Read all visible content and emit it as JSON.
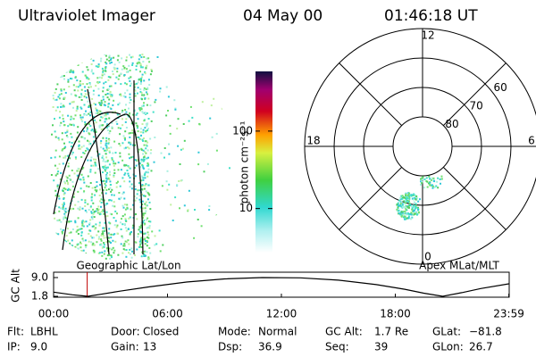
{
  "header": {
    "title": "Ultraviolet Imager",
    "date": "04 May 00",
    "time": "01:46:18 UT"
  },
  "image_caption": "Geographic Lat/Lon",
  "colorbar": {
    "label": "photon cm⁻²s⁻¹",
    "scale": "log",
    "clim": [
      2.7,
      590
    ],
    "ticks": [
      10,
      100
    ]
  },
  "polar": {
    "caption": "Apex MLat/MLT",
    "lim": 50,
    "lat_ticks": [
      80,
      70,
      60
    ],
    "mlt_ticks": [
      12,
      18,
      6,
      0
    ]
  },
  "chart_data": {
    "type": "line",
    "ylabel": "GC Alt",
    "x": [
      0,
      0.5,
      1,
      1.5,
      1.8,
      2.5,
      3.5,
      5,
      7,
      9,
      11,
      13,
      15,
      17,
      18.5,
      19.5,
      20.5,
      21.5,
      22.5,
      23.98
    ],
    "series": [
      {
        "color": "#000000",
        "values": [
          3.4,
          2.9,
          2.4,
          2.0,
          1.8,
          2.6,
          3.8,
          5.4,
          7.3,
          8.5,
          9.0,
          8.9,
          8.0,
          6.3,
          4.5,
          3.0,
          1.8,
          3.2,
          4.8,
          6.6
        ]
      }
    ],
    "xlim": [
      0,
      24
    ],
    "ylim": [
      1.8,
      9.0
    ],
    "xticks": [
      {
        "value": 0,
        "label": "00:00"
      },
      {
        "value": 6,
        "label": "06:00"
      },
      {
        "value": 12,
        "label": "12:00"
      },
      {
        "value": 18,
        "label": "18:00"
      },
      {
        "value": 23.98,
        "label": "23:59"
      }
    ],
    "yticks": [
      1.8,
      {
        "value": 9,
        "label": "9.0"
      }
    ],
    "marker_x": 1.77,
    "marker_color": "#c00000"
  },
  "info": [
    [
      {
        "label": "Flt:",
        "value": "LBHL"
      },
      {
        "label": "Door:",
        "value": "Closed"
      },
      {
        "label": "Mode:",
        "value": "Normal"
      },
      {
        "label": "GC Alt:",
        "value": "1.7 Re"
      },
      {
        "label": "GLat:",
        "value": "−81.8"
      }
    ],
    [
      {
        "label": "IP:",
        "value": "9.0"
      },
      {
        "label": "Gain:",
        "value": "13"
      },
      {
        "label": "Dsp:",
        "value": "36.9"
      },
      {
        "label": "Seq:",
        "value": "39"
      },
      {
        "label": "GLon:",
        "value": "26.7"
      }
    ]
  ]
}
